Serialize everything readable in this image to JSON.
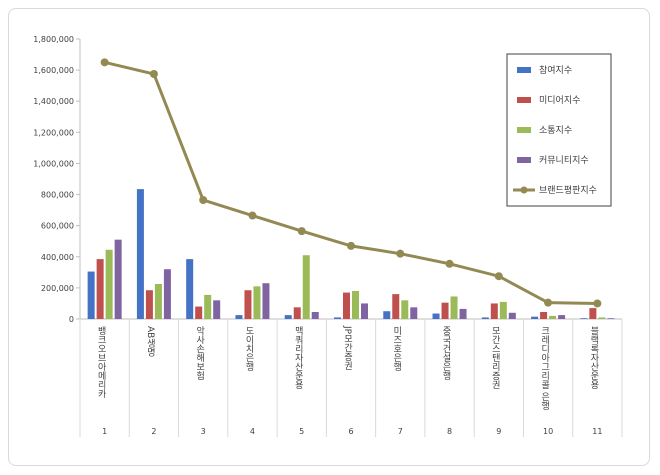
{
  "chart_data": {
    "type": "bar",
    "categories": [
      "1",
      "2",
      "3",
      "4",
      "5",
      "6",
      "7",
      "8",
      "9",
      "10",
      "11"
    ],
    "category_names": [
      "뱅크오브아메리카",
      "AB생명",
      "악사손해보험",
      "도이치은행",
      "맥쿼리자산운용",
      "JP모간증권",
      "미즈호은행",
      "중국건설은행",
      "모간스탠리증권",
      "크레디아그리콜 은행",
      "블랙록자산운용"
    ],
    "series": [
      {
        "name": "참여지수",
        "color": "#4472c4",
        "values": [
          305000,
          835000,
          385000,
          25000,
          25000,
          10000,
          50000,
          35000,
          10000,
          15000,
          5000
        ]
      },
      {
        "name": "미디어지수",
        "color": "#c0504d",
        "values": [
          385000,
          185000,
          80000,
          185000,
          75000,
          170000,
          160000,
          105000,
          100000,
          45000,
          70000
        ]
      },
      {
        "name": "소통지수",
        "color": "#9bbb59",
        "values": [
          445000,
          225000,
          155000,
          210000,
          410000,
          180000,
          120000,
          145000,
          110000,
          20000,
          10000
        ]
      },
      {
        "name": "커뮤니티지수",
        "color": "#8064a2",
        "values": [
          510000,
          320000,
          120000,
          230000,
          45000,
          100000,
          75000,
          65000,
          40000,
          25000,
          5000
        ]
      }
    ],
    "line_series": {
      "name": "브랜드평판지수",
      "color": "#938953",
      "values": [
        1650000,
        1575000,
        765000,
        665000,
        565000,
        470000,
        420000,
        355000,
        275000,
        105000,
        100000
      ]
    },
    "yticks": [
      "0",
      "200,000",
      "400,000",
      "600,000",
      "800,000",
      "1,000,000",
      "1,200,000",
      "1,400,000",
      "1,600,000",
      "1,800,000"
    ],
    "ylim": [
      0,
      1800000
    ],
    "legend_position": "top-right",
    "grid": false
  }
}
